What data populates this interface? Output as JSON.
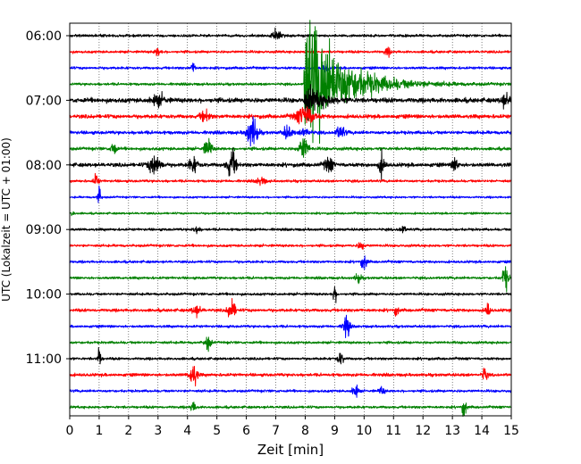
{
  "chart_data": {
    "type": "line",
    "title": "",
    "xlabel": "Zeit  [min]",
    "ylabel": "UTC (Lokalzeit = UTC + 01:00)",
    "xlim": [
      0,
      15
    ],
    "x_ticks": [
      0,
      1,
      2,
      3,
      4,
      5,
      6,
      7,
      8,
      9,
      10,
      11,
      12,
      13,
      14,
      15
    ],
    "x_grid": "dotted vertical lines at every minute",
    "row_minutes": 15,
    "y_ticks": [
      "06:00",
      "07:00",
      "08:00",
      "09:00",
      "10:00",
      "11:00"
    ],
    "trace_colors": [
      "#000000",
      "#ff0000",
      "#0000ff",
      "#008000"
    ],
    "rows": [
      {
        "start": "06:00",
        "color": "#000000",
        "noise": 0.1,
        "events": [
          {
            "t": 7.0,
            "amp": 0.5,
            "dur": 0.3
          }
        ]
      },
      {
        "start": "06:15",
        "color": "#ff0000",
        "noise": 0.1,
        "events": [
          {
            "t": 3.0,
            "amp": 0.35,
            "dur": 0.2
          },
          {
            "t": 10.8,
            "amp": 0.3,
            "dur": 0.2
          }
        ]
      },
      {
        "start": "06:30",
        "color": "#0000ff",
        "noise": 0.1,
        "events": [
          {
            "t": 4.2,
            "amp": 0.4,
            "dur": 0.15
          },
          {
            "t": 8.7,
            "amp": 0.3,
            "dur": 0.2
          }
        ]
      },
      {
        "start": "06:45",
        "color": "#008000",
        "noise": 0.1,
        "events": [
          {
            "t": 7.95,
            "amp": 6.0,
            "dur": 3.6,
            "kind": "quake"
          }
        ]
      },
      {
        "start": "07:00",
        "color": "#000000",
        "noise": 0.18,
        "events": [
          {
            "t": 7.95,
            "amp": 1.6,
            "dur": 1.4,
            "kind": "quake"
          },
          {
            "t": 3.0,
            "amp": 0.4,
            "dur": 0.5
          },
          {
            "t": 14.8,
            "amp": 0.5,
            "dur": 0.3
          }
        ]
      },
      {
        "start": "07:15",
        "color": "#ff0000",
        "noise": 0.15,
        "events": [
          {
            "t": 4.6,
            "amp": 0.5,
            "dur": 0.3
          },
          {
            "t": 8.0,
            "amp": 0.8,
            "dur": 0.6
          }
        ]
      },
      {
        "start": "07:30",
        "color": "#0000ff",
        "noise": 0.13,
        "events": [
          {
            "t": 6.2,
            "amp": 1.3,
            "dur": 0.35
          },
          {
            "t": 7.4,
            "amp": 0.5,
            "dur": 0.3
          },
          {
            "t": 8.0,
            "amp": 0.4,
            "dur": 0.3
          },
          {
            "t": 9.2,
            "amp": 0.5,
            "dur": 0.3
          }
        ]
      },
      {
        "start": "07:45",
        "color": "#008000",
        "noise": 0.12,
        "events": [
          {
            "t": 1.5,
            "amp": 0.8,
            "dur": 0.15
          },
          {
            "t": 4.7,
            "amp": 0.8,
            "dur": 0.25
          },
          {
            "t": 7.95,
            "amp": 1.0,
            "dur": 0.3
          }
        ]
      },
      {
        "start": "08:00",
        "color": "#000000",
        "noise": 0.15,
        "events": [
          {
            "t": 2.9,
            "amp": 0.9,
            "dur": 0.4
          },
          {
            "t": 4.2,
            "amp": 0.6,
            "dur": 0.3
          },
          {
            "t": 5.5,
            "amp": 1.2,
            "dur": 0.3
          },
          {
            "t": 8.8,
            "amp": 0.6,
            "dur": 0.3
          },
          {
            "t": 10.6,
            "amp": 0.9,
            "dur": 0.2
          },
          {
            "t": 13.1,
            "amp": 0.6,
            "dur": 0.2
          }
        ]
      },
      {
        "start": "08:15",
        "color": "#ff0000",
        "noise": 0.1,
        "events": [
          {
            "t": 0.9,
            "amp": 0.6,
            "dur": 0.15
          },
          {
            "t": 6.5,
            "amp": 0.3,
            "dur": 0.3
          }
        ]
      },
      {
        "start": "08:30",
        "color": "#0000ff",
        "noise": 0.08,
        "events": [
          {
            "t": 1.0,
            "amp": 0.8,
            "dur": 0.12
          }
        ]
      },
      {
        "start": "08:45",
        "color": "#008000",
        "noise": 0.08,
        "events": [
          {
            "t": 0.1,
            "amp": 0.3,
            "dur": 0.1
          }
        ]
      },
      {
        "start": "09:00",
        "color": "#000000",
        "noise": 0.1,
        "events": [
          {
            "t": 4.3,
            "amp": 0.3,
            "dur": 0.2
          },
          {
            "t": 11.3,
            "amp": 0.3,
            "dur": 0.2
          }
        ]
      },
      {
        "start": "09:15",
        "color": "#ff0000",
        "noise": 0.1,
        "events": [
          {
            "t": 9.9,
            "amp": 0.35,
            "dur": 0.2
          }
        ]
      },
      {
        "start": "09:30",
        "color": "#0000ff",
        "noise": 0.1,
        "events": [
          {
            "t": 10.0,
            "amp": 0.55,
            "dur": 0.2
          }
        ]
      },
      {
        "start": "09:45",
        "color": "#008000",
        "noise": 0.1,
        "events": [
          {
            "t": 9.8,
            "amp": 0.4,
            "dur": 0.2
          },
          {
            "t": 14.8,
            "amp": 1.0,
            "dur": 0.2
          }
        ]
      },
      {
        "start": "10:00",
        "color": "#000000",
        "noise": 0.1,
        "events": [
          {
            "t": 9.0,
            "amp": 0.6,
            "dur": 0.15
          }
        ]
      },
      {
        "start": "10:15",
        "color": "#ff0000",
        "noise": 0.12,
        "events": [
          {
            "t": 4.3,
            "amp": 0.4,
            "dur": 0.3
          },
          {
            "t": 5.5,
            "amp": 0.9,
            "dur": 0.25
          },
          {
            "t": 11.1,
            "amp": 0.35,
            "dur": 0.15
          },
          {
            "t": 14.2,
            "amp": 0.6,
            "dur": 0.15
          }
        ]
      },
      {
        "start": "10:30",
        "color": "#0000ff",
        "noise": 0.1,
        "events": [
          {
            "t": 9.4,
            "amp": 1.1,
            "dur": 0.2
          }
        ]
      },
      {
        "start": "10:45",
        "color": "#008000",
        "noise": 0.1,
        "events": [
          {
            "t": 4.7,
            "amp": 0.6,
            "dur": 0.2
          }
        ]
      },
      {
        "start": "11:00",
        "color": "#000000",
        "noise": 0.1,
        "events": [
          {
            "t": 1.0,
            "amp": 0.9,
            "dur": 0.12
          },
          {
            "t": 9.2,
            "amp": 0.5,
            "dur": 0.2
          }
        ]
      },
      {
        "start": "11:15",
        "color": "#ff0000",
        "noise": 0.12,
        "events": [
          {
            "t": 4.2,
            "amp": 1.0,
            "dur": 0.25
          },
          {
            "t": 14.1,
            "amp": 0.6,
            "dur": 0.15
          }
        ]
      },
      {
        "start": "11:30",
        "color": "#0000ff",
        "noise": 0.1,
        "events": [
          {
            "t": 9.7,
            "amp": 0.6,
            "dur": 0.2
          },
          {
            "t": 10.6,
            "amp": 0.3,
            "dur": 0.2
          }
        ]
      },
      {
        "start": "11:45",
        "color": "#008000",
        "noise": 0.1,
        "events": [
          {
            "t": 4.2,
            "amp": 0.35,
            "dur": 0.2
          },
          {
            "t": 13.4,
            "amp": 0.7,
            "dur": 0.15
          }
        ]
      }
    ]
  }
}
